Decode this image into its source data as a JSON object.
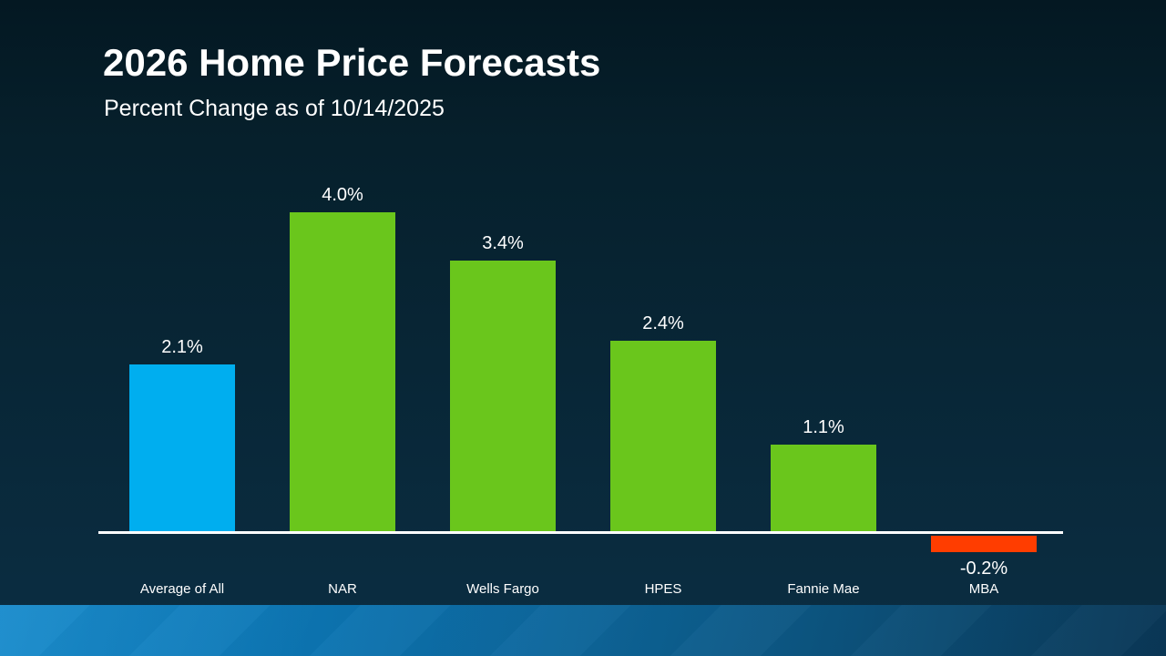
{
  "slide": {
    "title": "2026 Home Price Forecasts",
    "subtitle": "Percent Change as of 10/14/2025"
  },
  "chart_data": {
    "type": "bar",
    "title": "2026 Home Price Forecasts",
    "subtitle": "Percent Change as of 10/14/2025",
    "categories": [
      "Average of All",
      "NAR",
      "Wells Fargo",
      "HPES",
      "Fannie Mae",
      "MBA"
    ],
    "values": [
      2.1,
      4.0,
      3.4,
      2.4,
      1.1,
      -0.2
    ],
    "value_labels": [
      "2.1%",
      "4.0%",
      "3.4%",
      "2.4%",
      "1.1%",
      "-0.2%"
    ],
    "bar_colors": [
      "#00aeef",
      "#6ac61c",
      "#6ac61c",
      "#6ac61c",
      "#6ac61c",
      "#ff3d00"
    ],
    "xlabel": "",
    "ylabel": "",
    "ylim": [
      -0.5,
      4.5
    ],
    "baseline_value": 0,
    "grid": false,
    "legend": false,
    "value_labels_position": "outside-end",
    "axis_line_color": "#ffffff",
    "label_color": "#ffffff"
  },
  "theme": {
    "background_top": "#041822",
    "background_bottom": "#0b2e43",
    "footer_band_left": "#0a84c9",
    "footer_band_right": "#0b4064",
    "text_color": "#ffffff"
  }
}
